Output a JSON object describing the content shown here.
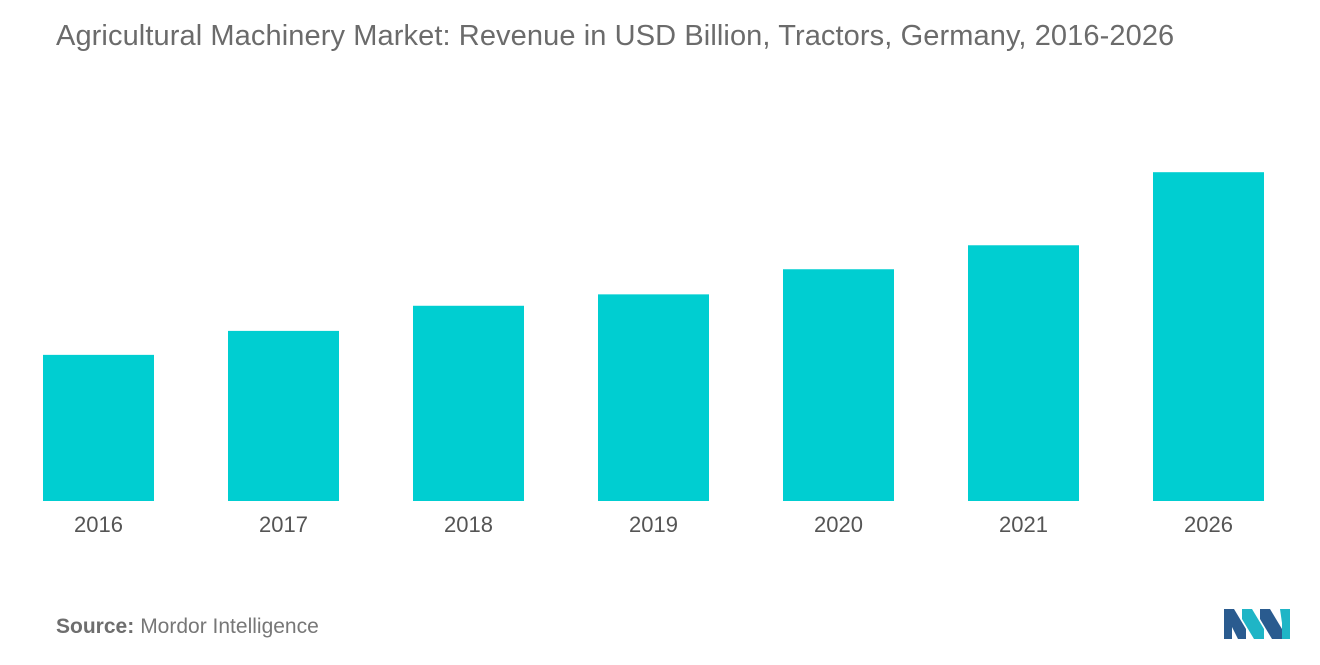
{
  "header": {
    "title": "Agricultural Machinery Market: Revenue in USD Billion, Tractors, Germany, 2016-2026"
  },
  "footer": {
    "source_label": "Source:",
    "source_value": "Mordor Intelligence"
  },
  "logo": {
    "icon": "mordor-intelligence-logo-icon",
    "colors": [
      "#2a5b8f",
      "#1fb5c6"
    ]
  },
  "chart_data": {
    "type": "bar",
    "title": "Agricultural Machinery Market: Revenue in USD Billion, Tractors, Germany, 2016-2026",
    "xlabel": "",
    "ylabel": "",
    "categories": [
      "2016",
      "2017",
      "2018",
      "2019",
      "2020",
      "2021",
      "2026"
    ],
    "values": [
      1.28,
      1.49,
      1.71,
      1.81,
      2.03,
      2.24,
      2.88
    ],
    "ylim": [
      0,
      3.6
    ],
    "grid": false,
    "legend": "none",
    "bar_color": "#00ced1"
  }
}
